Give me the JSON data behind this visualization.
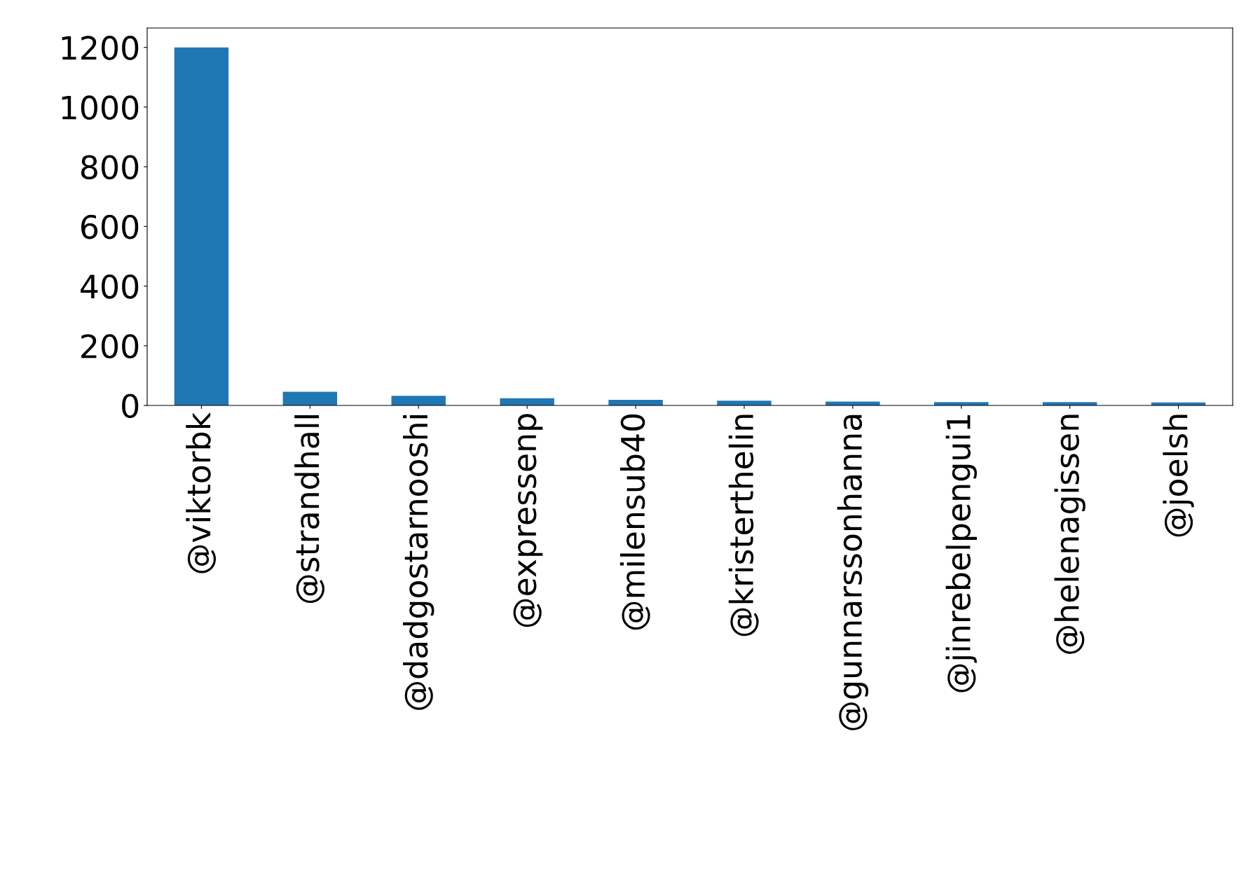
{
  "chart_data": {
    "type": "bar",
    "categories": [
      "@viktorbk",
      "@strandhall",
      "@dadgostarnooshi",
      "@expressenp",
      "@milensub40",
      "@kristerthelin",
      "@gunnarssonhanna",
      "@jinrebelpengui1",
      "@helenagissen",
      "@joelsh"
    ],
    "values": [
      1200,
      46,
      32,
      24,
      19,
      16,
      13,
      11,
      11,
      10
    ],
    "color": "#1f77b4",
    "ylim": [
      0,
      1265
    ],
    "yticks": [
      0,
      200,
      400,
      600,
      800,
      1000,
      1200
    ],
    "grid": false,
    "legend": false
  }
}
